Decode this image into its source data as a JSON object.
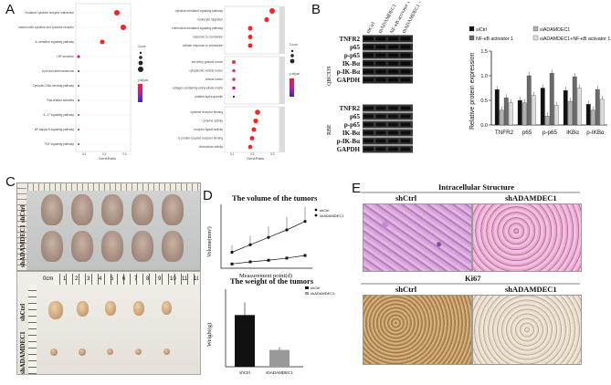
{
  "panels": {
    "a": "A",
    "b": "B",
    "c": "C",
    "d": "D",
    "e": "E"
  },
  "panel_a": {
    "left_terms": [
      "Oxidative cytokine receptor interaction",
      "Viral protein interaction with cytokine and cytokine receptor",
      "IL-sensitive signaling pathway",
      "HIF-sensitive",
      "Lipid and atherosclerosis",
      "Cytosolic DNA-sensing pathway",
      "Ras-related activities",
      "IL-17 signaling pathway",
      "NF-kappa B signaling pathway",
      "TNF signaling pathway"
    ],
    "right_top_terms": [
      "cytokine-mediated signaling pathway",
      "leukocyte migration",
      "chemokine-mediated signaling pathway",
      "response to chemokine",
      "cellular response to chemokine"
    ],
    "right_mid_terms": [
      "secretory granule lumen",
      "cytoplasmic vesicle lumen",
      "vesicle lumen",
      "collagen-containing extracellular matrix",
      "platelet alpha granule"
    ],
    "right_bot_terms": [
      "cytokine receptor binding",
      "cytokine activity",
      "receptor ligand activity",
      "G protein-coupled receptor binding",
      "chemokine activity"
    ],
    "xlabel_left": "GeneRatio",
    "xlabel_right": "GeneRatio",
    "left_ticks": [
      "0.1",
      "0.2",
      "0.3"
    ],
    "right_ticks": [
      "0.1",
      "0.2",
      "0.3"
    ],
    "legend_count": "Count",
    "legend_padj": "p.adjust"
  },
  "panel_b": {
    "lanes": [
      "shCtrl",
      "shADAMDEC1",
      "NF-κB activator 1",
      "shADAMDEC1\n+NF-κB activator 1"
    ],
    "lane_labels": [
      "shCtrl",
      "shADAMDEC1",
      "NF-κB activator 1",
      "shADAMDEC1 +NF-κB activator 1"
    ],
    "cell_line_top": "QBC939",
    "cell_line_bot": "RBE",
    "top_bands": [
      "TNFR2",
      "p65",
      "p-p65",
      "IK-Bα",
      "p-IK-Bα",
      "GAPDH"
    ],
    "bot_bands": [
      "TNFR2",
      "p65",
      "p-p65",
      "IK-Bα",
      "p-IK-Bα",
      "GAPDH"
    ]
  },
  "chart_data": [
    {
      "type": "bar",
      "ylabel": "Relative protein expression",
      "ylim": [
        0,
        1.5
      ],
      "yticks": [
        "0.0",
        "0.5",
        "1.0",
        "1.5"
      ],
      "categories": [
        "TNFR2",
        "p65",
        "p-p65",
        "IKBα",
        "p-IKBα"
      ],
      "series": [
        {
          "name": "siCtrl",
          "color": "#111111",
          "values": [
            0.72,
            0.5,
            0.75,
            0.7,
            0.42
          ]
        },
        {
          "name": "siADAMDEC1",
          "color": "#b0b0b0",
          "values": [
            0.3,
            0.45,
            0.18,
            0.48,
            0.3
          ]
        },
        {
          "name": "NF-κB activator 1",
          "color": "#6b6b6b",
          "values": [
            0.55,
            1.0,
            1.05,
            0.98,
            0.72
          ]
        },
        {
          "name": "siADAMDEC1+NF-κB activator 1",
          "color": "#dcdcdc",
          "values": [
            0.45,
            0.6,
            0.4,
            0.75,
            0.52
          ]
        }
      ]
    },
    {
      "type": "line",
      "title": "The volume of the tumors",
      "xlabel": "Measurement point(d)",
      "ylabel": "Volume(mm³)",
      "x": [
        1,
        2,
        3,
        4,
        5
      ],
      "series": [
        {
          "name": "shCtrl",
          "values": [
            150,
            220,
            290,
            360,
            440
          ]
        },
        {
          "name": "shADAMDEC1",
          "values": [
            40,
            60,
            75,
            95,
            120
          ]
        }
      ],
      "ylim": [
        0,
        600
      ]
    },
    {
      "type": "bar",
      "title": "The weight of the tumors",
      "ylabel": "Weight(g)",
      "categories": [
        "shCtrl",
        "shADAMDEC1"
      ],
      "series": [
        {
          "name": "weight",
          "values": [
            0.4,
            0.13
          ]
        }
      ],
      "ylim": [
        0,
        0.6
      ],
      "legend": [
        "shCtrl",
        "shADAMDEC1"
      ]
    }
  ],
  "panel_c": {
    "top_rows": [
      "shCtrl",
      "shADAMDEC1"
    ],
    "bot_rows": [
      "shCtrl",
      "shADAMDEC1"
    ],
    "ruler_label": "0cm",
    "ruler_numbers": [
      "1",
      "2",
      "3",
      "4",
      "5",
      "6",
      "7",
      "8",
      "9",
      "10",
      "11",
      "18"
    ]
  },
  "panel_e": {
    "title_top": "Intracellular Structure",
    "title_bot": "Ki67",
    "col1": "shCtrl",
    "col2": "shADAMDEC1"
  }
}
